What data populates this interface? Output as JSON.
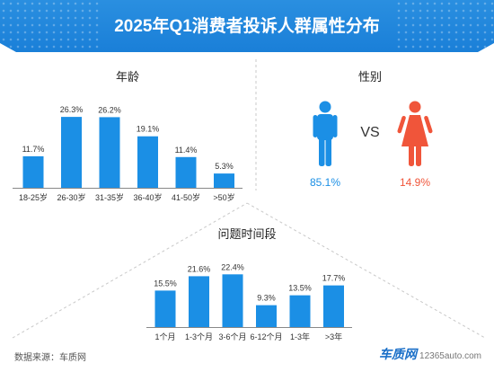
{
  "title": "2025年Q1消费者投诉人群属性分布",
  "accent_color": "#1b8fe5",
  "female_color": "#f0553a",
  "source_text": "数据来源：车质网",
  "logo": {
    "brand": "车质网",
    "site": "12365auto.com"
  },
  "gender": {
    "title": "性别",
    "vs_label": "VS",
    "male_icon": "male-person-icon",
    "female_icon": "female-person-icon",
    "male_label": "85.1%",
    "female_label": "14.9%"
  },
  "chart_data": [
    {
      "type": "bar",
      "title": "年龄",
      "categories": [
        "18-25岁",
        "26-30岁",
        "31-35岁",
        "36-40岁",
        "41-50岁",
        ">50岁"
      ],
      "values": [
        11.7,
        26.3,
        26.2,
        19.1,
        11.4,
        5.3
      ],
      "labels": [
        "11.7%",
        "26.3%",
        "26.2%",
        "19.1%",
        "11.4%",
        "5.3%"
      ],
      "unit": "%"
    },
    {
      "type": "bar",
      "title": "问题时间段",
      "categories": [
        "1个月",
        "1-3个月",
        "3-6个月",
        "6-12个月",
        "1-3年",
        ">3年"
      ],
      "values": [
        15.5,
        21.6,
        22.4,
        9.3,
        13.5,
        17.7
      ],
      "labels": [
        "15.5%",
        "21.6%",
        "22.4%",
        "9.3%",
        "13.5%",
        "17.7%"
      ],
      "unit": "%"
    }
  ]
}
